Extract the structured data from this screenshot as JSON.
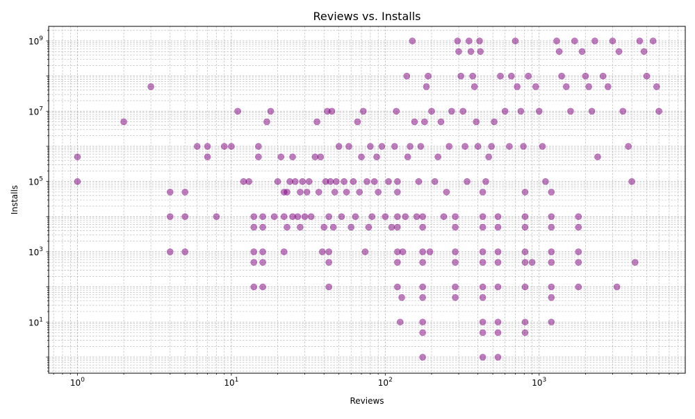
{
  "chart_data": {
    "type": "scatter",
    "title": "Reviews vs. Installs",
    "xlabel": "Reviews",
    "ylabel": "Installs",
    "x_scale": "log",
    "y_scale": "log",
    "xlim": [
      0.65,
      8900
    ],
    "ylim": [
      0.35,
      2600000000
    ],
    "grid": true,
    "marker_color": "#800080",
    "marker_alpha": 0.5,
    "x_ticks": [
      {
        "value": 1,
        "base": "10",
        "exp": "0"
      },
      {
        "value": 10,
        "base": "10",
        "exp": "1"
      },
      {
        "value": 100,
        "base": "10",
        "exp": "2"
      },
      {
        "value": 1000,
        "base": "10",
        "exp": "3"
      }
    ],
    "y_ticks": [
      {
        "value": 10,
        "base": "10",
        "exp": "1"
      },
      {
        "value": 1000,
        "base": "10",
        "exp": "3"
      },
      {
        "value": 100000,
        "base": "10",
        "exp": "5"
      },
      {
        "value": 10000000,
        "base": "10",
        "exp": "7"
      },
      {
        "value": 1000000000,
        "base": "10",
        "exp": "9"
      }
    ],
    "points": [
      [
        1,
        100000
      ],
      [
        1,
        500000
      ],
      [
        2,
        5000000
      ],
      [
        3,
        50000000
      ],
      [
        4,
        1000
      ],
      [
        4,
        10000
      ],
      [
        4,
        50000
      ],
      [
        5,
        1000
      ],
      [
        5,
        10000
      ],
      [
        5,
        50000
      ],
      [
        6,
        1000000
      ],
      [
        7,
        500000
      ],
      [
        7,
        1000000
      ],
      [
        8,
        10000
      ],
      [
        9,
        1000000
      ],
      [
        10,
        1000000
      ],
      [
        11,
        10000000
      ],
      [
        12,
        100000
      ],
      [
        13,
        100000
      ],
      [
        14,
        100
      ],
      [
        14,
        500
      ],
      [
        14,
        1000
      ],
      [
        14,
        5000
      ],
      [
        14,
        10000
      ],
      [
        15,
        500000
      ],
      [
        15,
        1000000
      ],
      [
        16,
        100
      ],
      [
        16,
        500
      ],
      [
        16,
        1000
      ],
      [
        16,
        5000
      ],
      [
        16,
        10000
      ],
      [
        17,
        5000000
      ],
      [
        18,
        10000000
      ],
      [
        19,
        10000
      ],
      [
        20,
        100000
      ],
      [
        21,
        500000
      ],
      [
        22,
        1000
      ],
      [
        22,
        10000
      ],
      [
        22,
        50000
      ],
      [
        23,
        5000
      ],
      [
        23,
        50000
      ],
      [
        24,
        100000
      ],
      [
        25,
        10000
      ],
      [
        25,
        500000
      ],
      [
        26,
        100000
      ],
      [
        27,
        10000
      ],
      [
        28,
        5000
      ],
      [
        28,
        50000
      ],
      [
        29,
        100000
      ],
      [
        30,
        10000
      ],
      [
        31,
        50000
      ],
      [
        32,
        100000
      ],
      [
        33,
        10000
      ],
      [
        35,
        500000
      ],
      [
        36,
        5000000
      ],
      [
        37,
        50000
      ],
      [
        38,
        500000
      ],
      [
        39,
        1000
      ],
      [
        40,
        5000
      ],
      [
        41,
        100000
      ],
      [
        42,
        10000000
      ],
      [
        43,
        100
      ],
      [
        43,
        500
      ],
      [
        43,
        1000
      ],
      [
        43,
        10000
      ],
      [
        44,
        100000
      ],
      [
        45,
        10000000
      ],
      [
        46,
        5000
      ],
      [
        47,
        50000
      ],
      [
        48,
        100000
      ],
      [
        50,
        1000000
      ],
      [
        52,
        10000
      ],
      [
        54,
        100000
      ],
      [
        56,
        50000
      ],
      [
        58,
        1000000
      ],
      [
        60,
        5000
      ],
      [
        62,
        100000
      ],
      [
        64,
        10000
      ],
      [
        66,
        5000000
      ],
      [
        68,
        50000
      ],
      [
        70,
        500000
      ],
      [
        72,
        10000000
      ],
      [
        74,
        1000
      ],
      [
        76,
        100000
      ],
      [
        78,
        5000
      ],
      [
        80,
        1000000
      ],
      [
        82,
        10000
      ],
      [
        85,
        100000
      ],
      [
        88,
        500000
      ],
      [
        90,
        50000
      ],
      [
        95,
        1000000
      ],
      [
        100,
        10000
      ],
      [
        105,
        100000
      ],
      [
        110,
        5000
      ],
      [
        115,
        1000000
      ],
      [
        118,
        10000000
      ],
      [
        120,
        100
      ],
      [
        120,
        500
      ],
      [
        120,
        1000
      ],
      [
        120,
        5000
      ],
      [
        120,
        10000
      ],
      [
        120,
        50000
      ],
      [
        120,
        100000
      ],
      [
        125,
        10
      ],
      [
        128,
        50
      ],
      [
        130,
        1000
      ],
      [
        135,
        10000
      ],
      [
        138,
        100000000
      ],
      [
        140,
        500000
      ],
      [
        145,
        1000000
      ],
      [
        150,
        1000000000
      ],
      [
        155,
        5000000
      ],
      [
        160,
        10000
      ],
      [
        165,
        100000
      ],
      [
        170,
        1000000
      ],
      [
        175,
        1
      ],
      [
        175,
        5
      ],
      [
        175,
        10
      ],
      [
        175,
        50
      ],
      [
        175,
        100
      ],
      [
        175,
        500
      ],
      [
        175,
        1000
      ],
      [
        175,
        5000
      ],
      [
        175,
        10000
      ],
      [
        180,
        5000000
      ],
      [
        185,
        50000000
      ],
      [
        190,
        100000000
      ],
      [
        195,
        1000
      ],
      [
        200,
        10000000
      ],
      [
        210,
        100000
      ],
      [
        220,
        500000
      ],
      [
        230,
        5000000
      ],
      [
        240,
        10000
      ],
      [
        250,
        50000
      ],
      [
        260,
        1000000
      ],
      [
        270,
        10000000
      ],
      [
        285,
        50
      ],
      [
        285,
        100
      ],
      [
        285,
        500
      ],
      [
        285,
        1000
      ],
      [
        285,
        5000
      ],
      [
        285,
        10000
      ],
      [
        295,
        1000000000
      ],
      [
        300,
        500000000
      ],
      [
        310,
        100000000
      ],
      [
        320,
        10000000
      ],
      [
        330,
        1000000
      ],
      [
        340,
        100000
      ],
      [
        350,
        1000000000
      ],
      [
        360,
        500000000
      ],
      [
        370,
        100000000
      ],
      [
        380,
        50000000
      ],
      [
        390,
        5000000
      ],
      [
        400,
        1000000
      ],
      [
        410,
        1000000000
      ],
      [
        415,
        500000000
      ],
      [
        430,
        1
      ],
      [
        430,
        5
      ],
      [
        430,
        10
      ],
      [
        430,
        50
      ],
      [
        430,
        100
      ],
      [
        430,
        500
      ],
      [
        430,
        1000
      ],
      [
        430,
        5000
      ],
      [
        430,
        10000
      ],
      [
        430,
        50000
      ],
      [
        450,
        100000
      ],
      [
        470,
        500000
      ],
      [
        490,
        1000000
      ],
      [
        510,
        5000000
      ],
      [
        540,
        1
      ],
      [
        540,
        5
      ],
      [
        540,
        10
      ],
      [
        540,
        100
      ],
      [
        540,
        500
      ],
      [
        540,
        1000
      ],
      [
        540,
        5000
      ],
      [
        540,
        10000
      ],
      [
        560,
        100000000
      ],
      [
        600,
        10000000
      ],
      [
        640,
        1000000
      ],
      [
        660,
        100000000
      ],
      [
        700,
        1000000000
      ],
      [
        720,
        50000000
      ],
      [
        760,
        10000000
      ],
      [
        790,
        1000000
      ],
      [
        810,
        5
      ],
      [
        810,
        10
      ],
      [
        810,
        100
      ],
      [
        810,
        500
      ],
      [
        810,
        1000
      ],
      [
        810,
        5000
      ],
      [
        810,
        10000
      ],
      [
        810,
        50000
      ],
      [
        850,
        100000000
      ],
      [
        900,
        500
      ],
      [
        950,
        50000000
      ],
      [
        1000,
        10000000
      ],
      [
        1050,
        1000000
      ],
      [
        1100,
        100000
      ],
      [
        1200,
        10
      ],
      [
        1200,
        50
      ],
      [
        1200,
        100
      ],
      [
        1200,
        500
      ],
      [
        1200,
        1000
      ],
      [
        1200,
        5000
      ],
      [
        1200,
        10000
      ],
      [
        1200,
        50000
      ],
      [
        1300,
        1000000000
      ],
      [
        1350,
        500000000
      ],
      [
        1400,
        100000000
      ],
      [
        1500,
        50000000
      ],
      [
        1600,
        10000000
      ],
      [
        1700,
        1000000000
      ],
      [
        1800,
        100
      ],
      [
        1800,
        500
      ],
      [
        1800,
        1000
      ],
      [
        1800,
        5000
      ],
      [
        1800,
        10000
      ],
      [
        1900,
        500000000
      ],
      [
        2000,
        100000000
      ],
      [
        2100,
        50000000
      ],
      [
        2200,
        10000000
      ],
      [
        2300,
        1000000000
      ],
      [
        2400,
        500000
      ],
      [
        2600,
        100000000
      ],
      [
        2800,
        50000000
      ],
      [
        3000,
        1000000000
      ],
      [
        3200,
        100
      ],
      [
        3300,
        500000000
      ],
      [
        3500,
        10000000
      ],
      [
        3800,
        1000000
      ],
      [
        4000,
        100000
      ],
      [
        4200,
        500
      ],
      [
        4500,
        1000000000
      ],
      [
        4800,
        500000000
      ],
      [
        5000,
        100000000
      ],
      [
        5500,
        1000000000
      ],
      [
        5800,
        50000000
      ],
      [
        6000,
        10000000
      ]
    ]
  }
}
